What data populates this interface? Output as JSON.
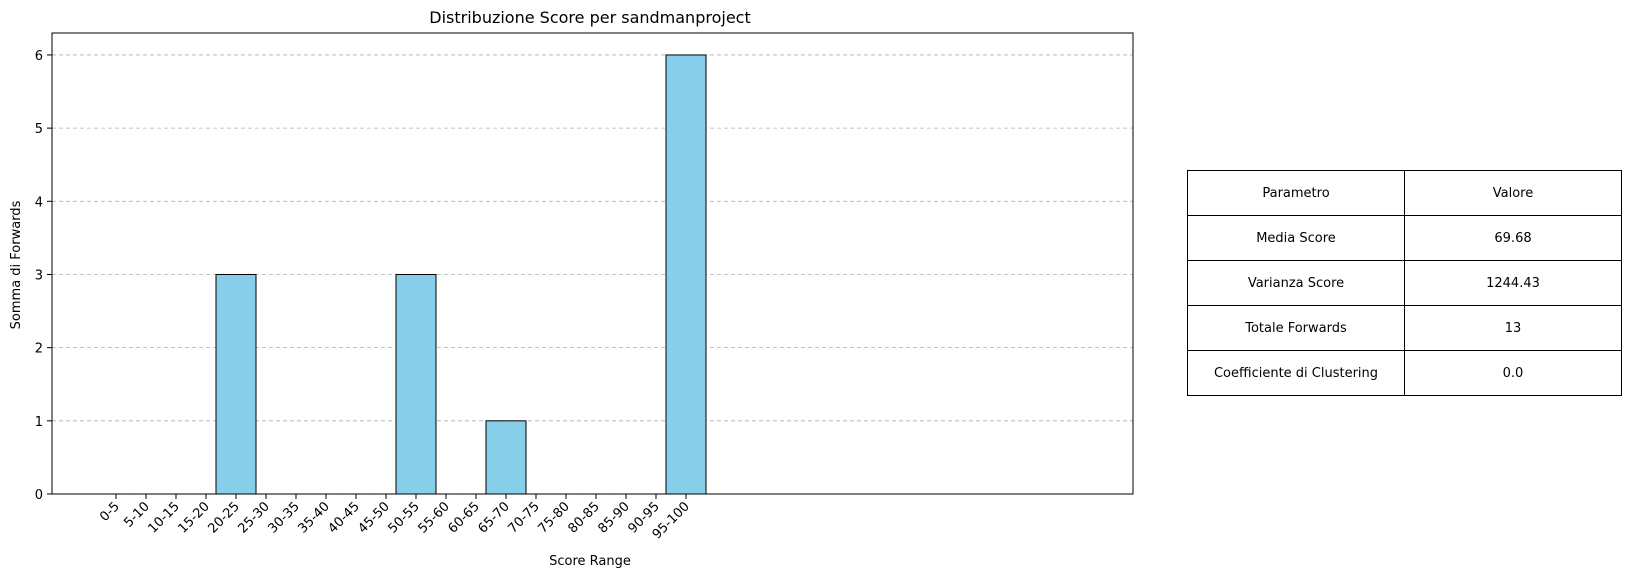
{
  "chart_data": {
    "type": "bar",
    "title": "Distribuzione Score per sandmanproject",
    "xlabel": "Score Range",
    "ylabel": "Somma di Forwards",
    "categories": [
      "0-5",
      "5-10",
      "10-15",
      "15-20",
      "20-25",
      "25-30",
      "30-35",
      "35-40",
      "40-45",
      "45-50",
      "50-55",
      "55-60",
      "60-65",
      "65-70",
      "70-75",
      "75-80",
      "80-85",
      "85-90",
      "90-95",
      "95-100"
    ],
    "values": [
      0,
      0,
      0,
      0,
      3,
      0,
      0,
      0,
      0,
      0,
      3,
      0,
      0,
      1,
      0,
      0,
      0,
      0,
      0,
      6
    ],
    "ylim": [
      0,
      6.3
    ],
    "yticks": [
      0,
      1,
      2,
      3,
      4,
      5,
      6
    ],
    "grid": "y, dashed",
    "bar_color": "#87CEEB",
    "edge_color": "#000000"
  },
  "table": {
    "header": {
      "param": "Parametro",
      "value": "Valore"
    },
    "rows": [
      {
        "param": "Media Score",
        "value": "69.68"
      },
      {
        "param": "Varianza Score",
        "value": "1244.43"
      },
      {
        "param": "Totale Forwards",
        "value": "13"
      },
      {
        "param": "Coefficiente di Clustering",
        "value": "0.0"
      }
    ]
  }
}
